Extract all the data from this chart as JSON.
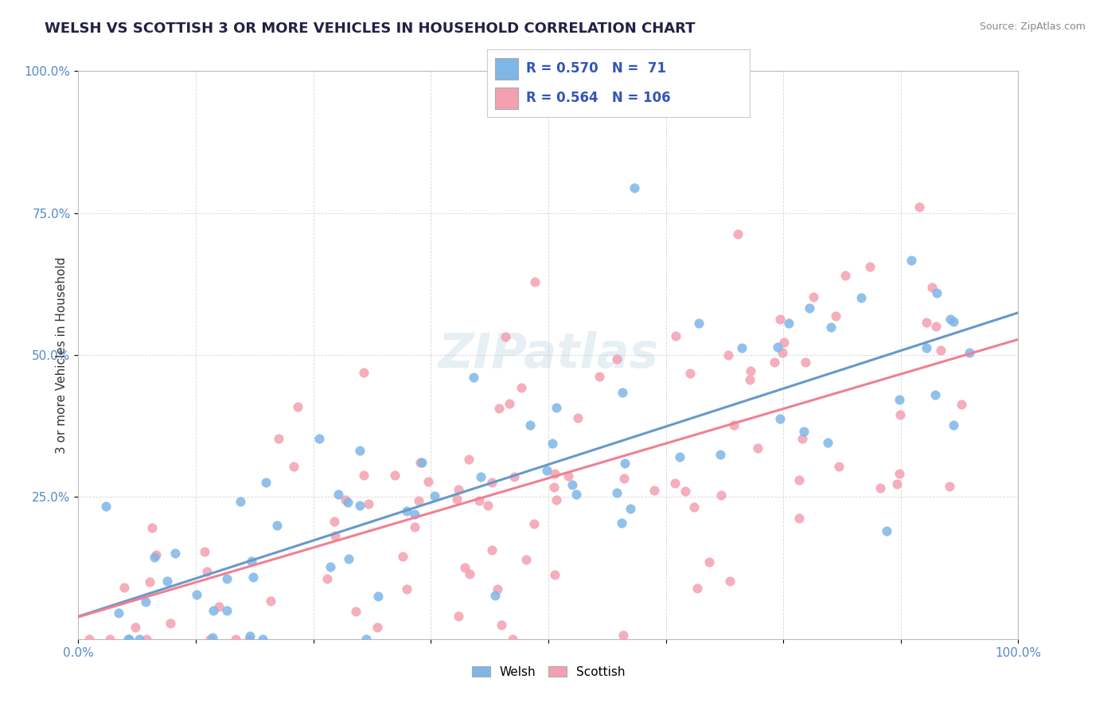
{
  "title": "WELSH VS SCOTTISH 3 OR MORE VEHICLES IN HOUSEHOLD CORRELATION CHART",
  "source": "Source: ZipAtlas.com",
  "ylabel": "3 or more Vehicles in Household",
  "xlim": [
    0.0,
    100.0
  ],
  "ylim": [
    0.0,
    100.0
  ],
  "welsh_R": 0.57,
  "welsh_N": 71,
  "scottish_R": 0.564,
  "scottish_N": 106,
  "welsh_color": "#7EB6E8",
  "scottish_color": "#F4A0B0",
  "welsh_line_color": "#6699CC",
  "scottish_line_color": "#F08090",
  "background_color": "#FFFFFF",
  "grid_color": "#CCCCCC",
  "watermark": "ZIPatlas",
  "legend_color": "#3355BB",
  "tick_color": "#5588CC"
}
